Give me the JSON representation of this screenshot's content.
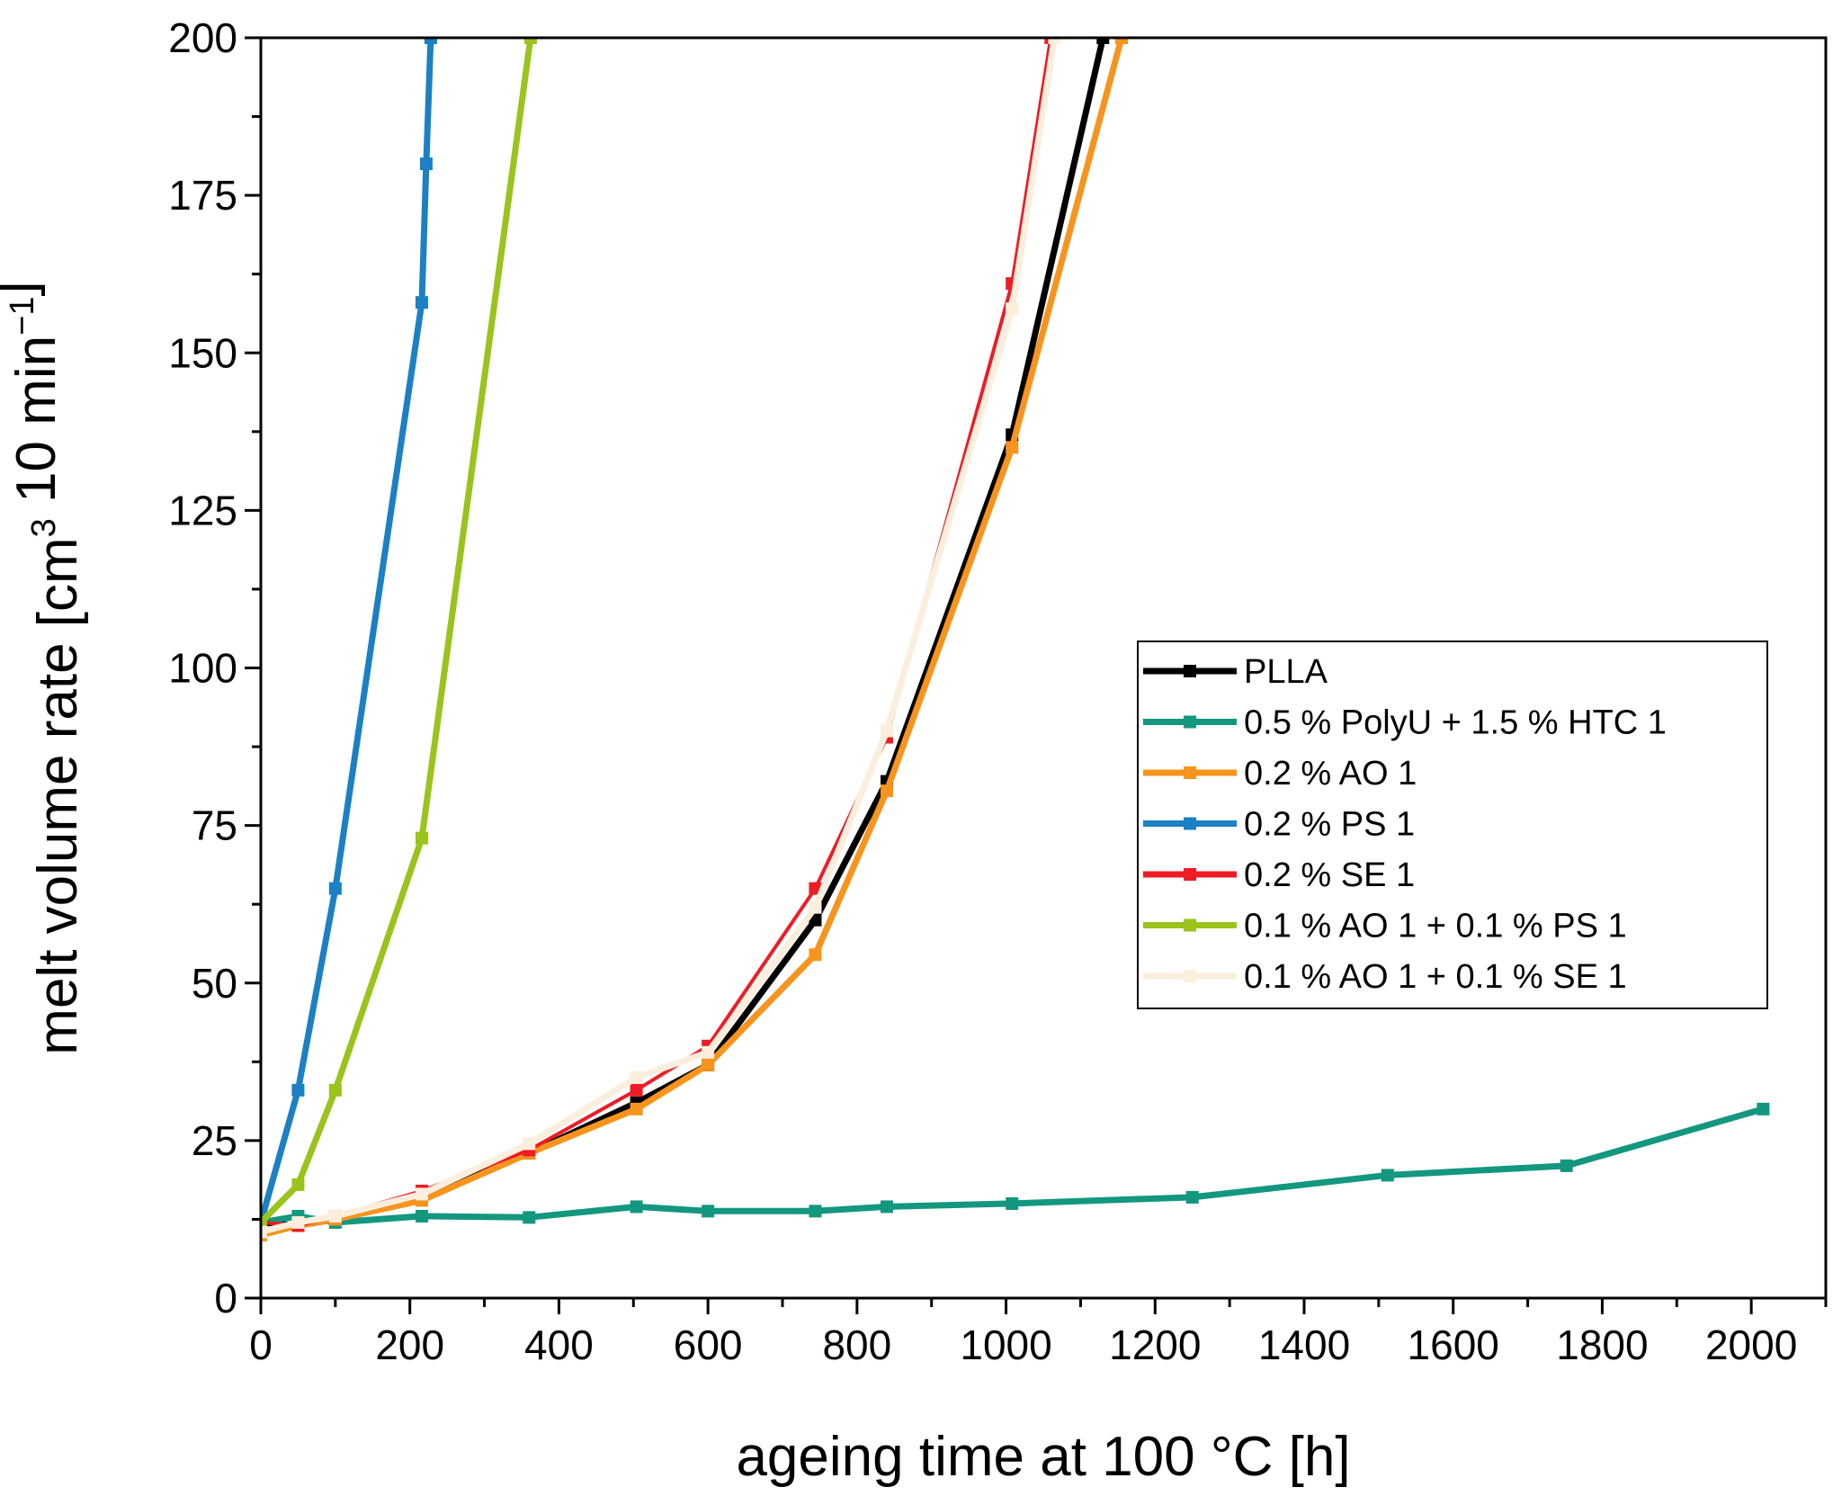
{
  "chart_data": {
    "type": "line",
    "title": "",
    "xlabel": "ageing time at 100 °C [h]",
    "ylabel_parts": {
      "pre": "melt volume rate [cm",
      "sup1": "3",
      "mid": " 10 min",
      "sup2": "−1",
      "post": "]"
    },
    "xlim": [
      0,
      2100
    ],
    "ylim": [
      0,
      200
    ],
    "xticks": [
      0,
      200,
      400,
      600,
      800,
      1000,
      1200,
      1400,
      1600,
      1800,
      2000
    ],
    "yticks": [
      0,
      25,
      50,
      75,
      100,
      125,
      150,
      175,
      200
    ],
    "legend_position": "right",
    "series": [
      {
        "name": "PLLA",
        "color": "#000000",
        "width": 7,
        "x": [
          0,
          50,
          100,
          216,
          360,
          504,
          600,
          744,
          840,
          1008,
          1130
        ],
        "y": [
          12,
          11.5,
          12.5,
          16,
          23,
          31,
          37,
          60,
          82,
          137,
          200
        ]
      },
      {
        "name": "0.5 % PolyU + 1.5 % HTC 1",
        "color": "#13977f",
        "width": 7,
        "x": [
          0,
          50,
          100,
          216,
          360,
          504,
          600,
          744,
          840,
          1008,
          1250,
          1512,
          1752,
          2016
        ],
        "y": [
          12,
          13,
          12,
          13,
          12.8,
          14.5,
          13.8,
          13.8,
          14.5,
          15,
          16,
          19.5,
          21,
          30
        ]
      },
      {
        "name": "0.2 % AO 1",
        "color": "#f7941d",
        "width": 7,
        "x": [
          0,
          50,
          100,
          216,
          360,
          504,
          600,
          744,
          840,
          1008,
          1155
        ],
        "y": [
          10,
          11.5,
          12.5,
          15.5,
          23,
          30,
          37,
          54.5,
          80.5,
          135,
          200
        ]
      },
      {
        "name": "0.2 % PS 1",
        "color": "#1b80c4",
        "width": 7,
        "x": [
          0,
          50,
          100,
          216,
          222,
          228
        ],
        "y": [
          12,
          33,
          65,
          158,
          180,
          200
        ]
      },
      {
        "name": "0.2 % SE 1",
        "color": "#ee1c25",
        "width": 4,
        "x": [
          0,
          50,
          100,
          216,
          360,
          504,
          600,
          744,
          840,
          1008,
          1060
        ],
        "y": [
          12,
          11.5,
          13,
          17,
          23.5,
          33,
          40,
          65,
          89,
          161,
          200
        ]
      },
      {
        "name": "0.1 % AO 1 + 0.1 % PS 1",
        "color": "#9ac31c",
        "width": 7,
        "x": [
          0,
          50,
          100,
          216,
          362
        ],
        "y": [
          12,
          18,
          33,
          73,
          200
        ]
      },
      {
        "name": "0.1 % AO 1 + 0.1 % SE 1",
        "color": "#fbeedd",
        "width": 7,
        "x": [
          0,
          50,
          100,
          216,
          360,
          504,
          600,
          744,
          840,
          1008,
          1065
        ],
        "y": [
          10.5,
          12,
          13,
          16.5,
          24.5,
          35,
          39,
          62,
          90,
          157,
          200
        ]
      }
    ]
  }
}
